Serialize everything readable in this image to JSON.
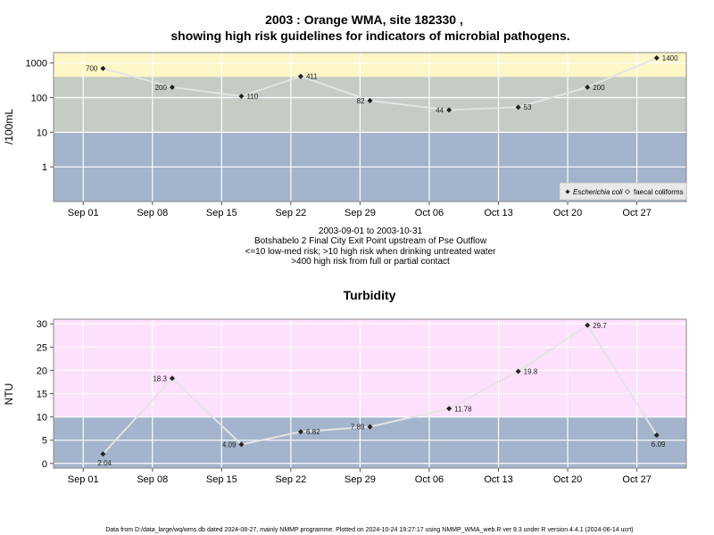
{
  "figure": {
    "title_line1": "2003 : Orange WMA, site 182330 ,",
    "title_line2": "showing high risk guidelines for indicators of microbial pathogens.",
    "subtitle_lines": [
      "2003-09-01 to 2003-10-31",
      "Botshabelo 2 Final City Exit Point upstream of Pse Outflow",
      "<=10 low-med risk; >10 high risk when drinking untreated water",
      ">400 high risk from full or partial contact"
    ],
    "footer": "Data from D:/data_large/wq/wms.db dated 2024-08-27, mainly NMMP programme. Plotted on 2024-10-24 19:27:17 using NMMP_WMA_web.R ver 9.3 under R version 4.4.1 (2024-06-14 ucrt)"
  },
  "colors": {
    "low_band": "#a3b4cc",
    "mid_band": "#c4ccc4",
    "high_band": "#fdf6c6",
    "turb_high_band": "#fde0fb",
    "line": "#e4e4e4",
    "point": "#222222",
    "grid": "#ffffff"
  },
  "chart_data": [
    {
      "type": "line",
      "ylabel": "/100mL",
      "yscale": "log",
      "ylim": [
        0.1,
        2000
      ],
      "yticks": [
        1,
        10,
        100,
        1000
      ],
      "ytick_labels": [
        "1",
        "10",
        "100",
        "1000"
      ],
      "xlim": [
        "2003-08-29",
        "2003-11-01"
      ],
      "xticks": [
        "2003-09-01",
        "2003-09-08",
        "2003-09-15",
        "2003-09-22",
        "2003-09-29",
        "2003-10-06",
        "2003-10-13",
        "2003-10-20",
        "2003-10-27"
      ],
      "xtick_labels": [
        "Sep 01",
        "Sep 08",
        "Sep 15",
        "Sep 22",
        "Sep 29",
        "Oct 06",
        "Oct 13",
        "Oct 20",
        "Oct 27"
      ],
      "bands": [
        {
          "from": 0.1,
          "to": 10,
          "color": "#a3b4cc"
        },
        {
          "from": 10,
          "to": 400,
          "color": "#c4ccc4"
        },
        {
          "from": 400,
          "to": 2000,
          "color": "#fdf6c6"
        }
      ],
      "series": [
        {
          "name": "Escherichia coli",
          "x": [
            "2003-09-03",
            "2003-09-10",
            "2003-09-17",
            "2003-09-23",
            "2003-09-30",
            "2003-10-08",
            "2003-10-15",
            "2003-10-22",
            "2003-10-29"
          ],
          "values": [
            700,
            200,
            110,
            411,
            82,
            44,
            53,
            200,
            1400
          ],
          "labels": [
            "700",
            "200",
            "110",
            "411",
            "82",
            "44",
            "53",
            "200",
            "1400"
          ],
          "label_side": [
            "left",
            "left",
            "right",
            "right",
            "left",
            "left",
            "right",
            "right",
            "right"
          ]
        }
      ],
      "legend": {
        "placement": "bottom-right",
        "entries": [
          {
            "label": "Escherichia coli",
            "marker": "filled-diamond",
            "italic": true
          },
          {
            "label": "faecal coliforms",
            "marker": "open-diamond",
            "italic": false
          }
        ]
      }
    },
    {
      "type": "line",
      "title": "Turbidity",
      "ylabel": "NTU",
      "yscale": "linear",
      "ylim": [
        -1,
        31
      ],
      "yticks": [
        0,
        5,
        10,
        15,
        20,
        25,
        30
      ],
      "ytick_labels": [
        "0",
        "5",
        "10",
        "15",
        "20",
        "25",
        "30"
      ],
      "xlim": [
        "2003-08-29",
        "2003-11-01"
      ],
      "xticks": [
        "2003-09-01",
        "2003-09-08",
        "2003-09-15",
        "2003-09-22",
        "2003-09-29",
        "2003-10-06",
        "2003-10-13",
        "2003-10-20",
        "2003-10-27"
      ],
      "xtick_labels": [
        "Sep 01",
        "Sep 08",
        "Sep 15",
        "Sep 22",
        "Sep 29",
        "Oct 06",
        "Oct 13",
        "Oct 20",
        "Oct 27"
      ],
      "bands": [
        {
          "from": -1,
          "to": 10,
          "color": "#a3b4cc"
        },
        {
          "from": 10,
          "to": 31,
          "color": "#fde0fb"
        }
      ],
      "series": [
        {
          "name": "Turbidity",
          "x": [
            "2003-09-03",
            "2003-09-10",
            "2003-09-17",
            "2003-09-23",
            "2003-09-30",
            "2003-10-08",
            "2003-10-15",
            "2003-10-22",
            "2003-10-29"
          ],
          "values": [
            2.04,
            18.3,
            4.09,
            6.82,
            7.89,
            11.78,
            19.8,
            29.7,
            6.09
          ],
          "labels": [
            "2.04",
            "18.3",
            "4.09",
            "6.82",
            "7.89",
            "11.78",
            "19.8",
            "29.7",
            "6.09"
          ],
          "label_side": [
            "below",
            "left",
            "left",
            "right",
            "left",
            "right",
            "right",
            "right",
            "below"
          ]
        }
      ]
    }
  ]
}
